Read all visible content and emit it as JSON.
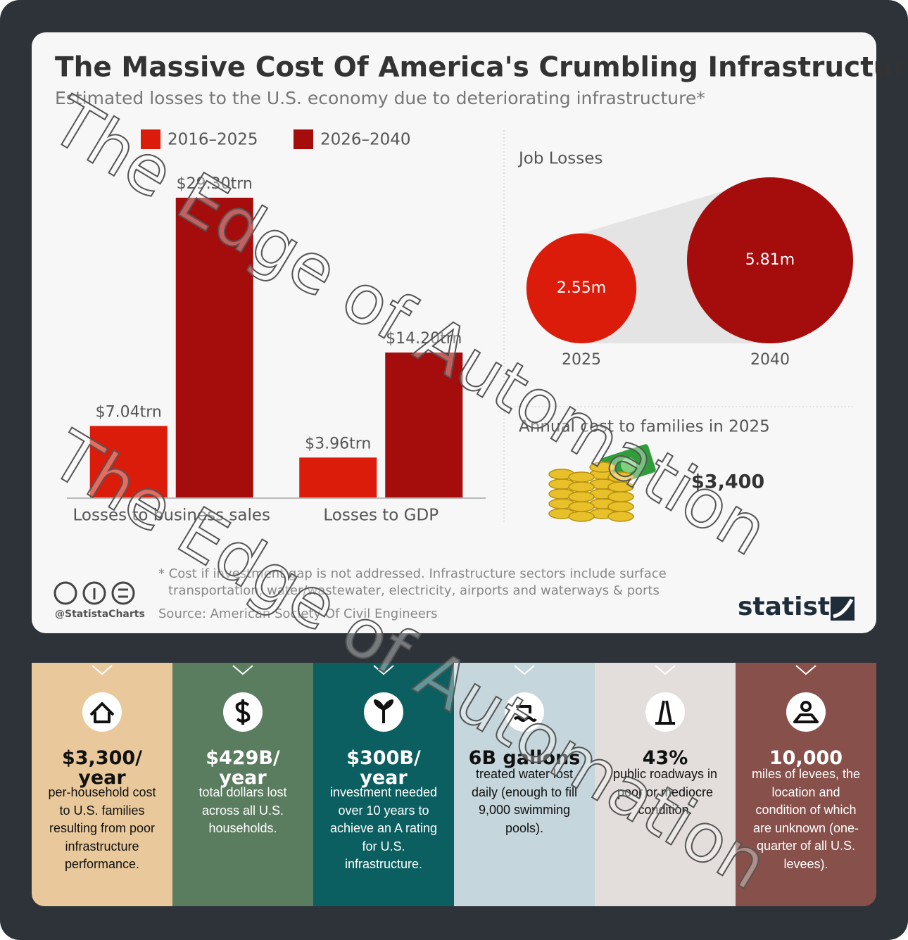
{
  "chart_data": [
    {
      "type": "bar",
      "title": "The Massive Cost Of America's Crumbling Infrastructure",
      "subtitle": "Estimated losses to the U.S. economy due to deteriorating infrastructure*",
      "categories": [
        "Losses to business sales",
        "Losses to GDP"
      ],
      "series": [
        {
          "name": "2016–2025",
          "color": "#dc1c0a",
          "values": [
            7.04,
            3.96
          ],
          "value_labels": [
            "$7.04trn",
            "$3.96trn"
          ]
        },
        {
          "name": "2026–2040",
          "color": "#a50c0c",
          "values": [
            29.3,
            14.2
          ],
          "value_labels": [
            "$29.30trn",
            "$14.20trn"
          ]
        }
      ]
    },
    {
      "type": "bubble",
      "title": "Job Losses",
      "categories": [
        "2025",
        "2040"
      ],
      "values": [
        2.55,
        5.81
      ],
      "value_labels": [
        "2.55m",
        "5.81m"
      ],
      "colors": [
        "#dc1c0a",
        "#a50c0c"
      ]
    }
  ],
  "family_cost": {
    "title": "Annual cost to families in 2025",
    "value": "$3,400"
  },
  "footnote": "* Cost if investment gap is not addressed. Infrastructure sectors include surface transportation, water/wastewater, electricity, airports and waterways & ports",
  "source": "Source: American Society Of Civil Engineers",
  "handle": "@StatistaCharts",
  "brand": "statista",
  "watermark": [
    "The Edge of Automation",
    "The Edge of Automation"
  ],
  "panels": [
    {
      "heading": [
        "$3,300/",
        "year"
      ],
      "text": "per-household cost to U.S. families resulting from poor infrastructure performance.",
      "color": "#e9c99b",
      "text_color": "#111111"
    },
    {
      "heading": [
        "$429B/",
        "year"
      ],
      "text": "total dollars lost across all U.S. households.",
      "color": "#5b7d5f",
      "text_color": "#ffffff"
    },
    {
      "heading": [
        "$300B/",
        "year"
      ],
      "text": "investment needed over 10 years to achieve an A rating for U.S. infrastructure.",
      "color": "#0b5f60",
      "text_color": "#ffffff"
    },
    {
      "heading": [
        "6B gallons"
      ],
      "text": "treated water lost daily (enough to fill 9,000 swimming pools).",
      "color": "#c5d6dc",
      "text_color": "#111111"
    },
    {
      "heading": [
        "43%"
      ],
      "text": "public roadways in poor or mediocre condition.",
      "color": "#e3dedb",
      "text_color": "#111111"
    },
    {
      "heading": [
        "10,000"
      ],
      "text": "miles of levees, the location and condition of which are unknown (one-quarter of all U.S. levees).",
      "color": "#87504a",
      "text_color": "#ffffff"
    }
  ]
}
